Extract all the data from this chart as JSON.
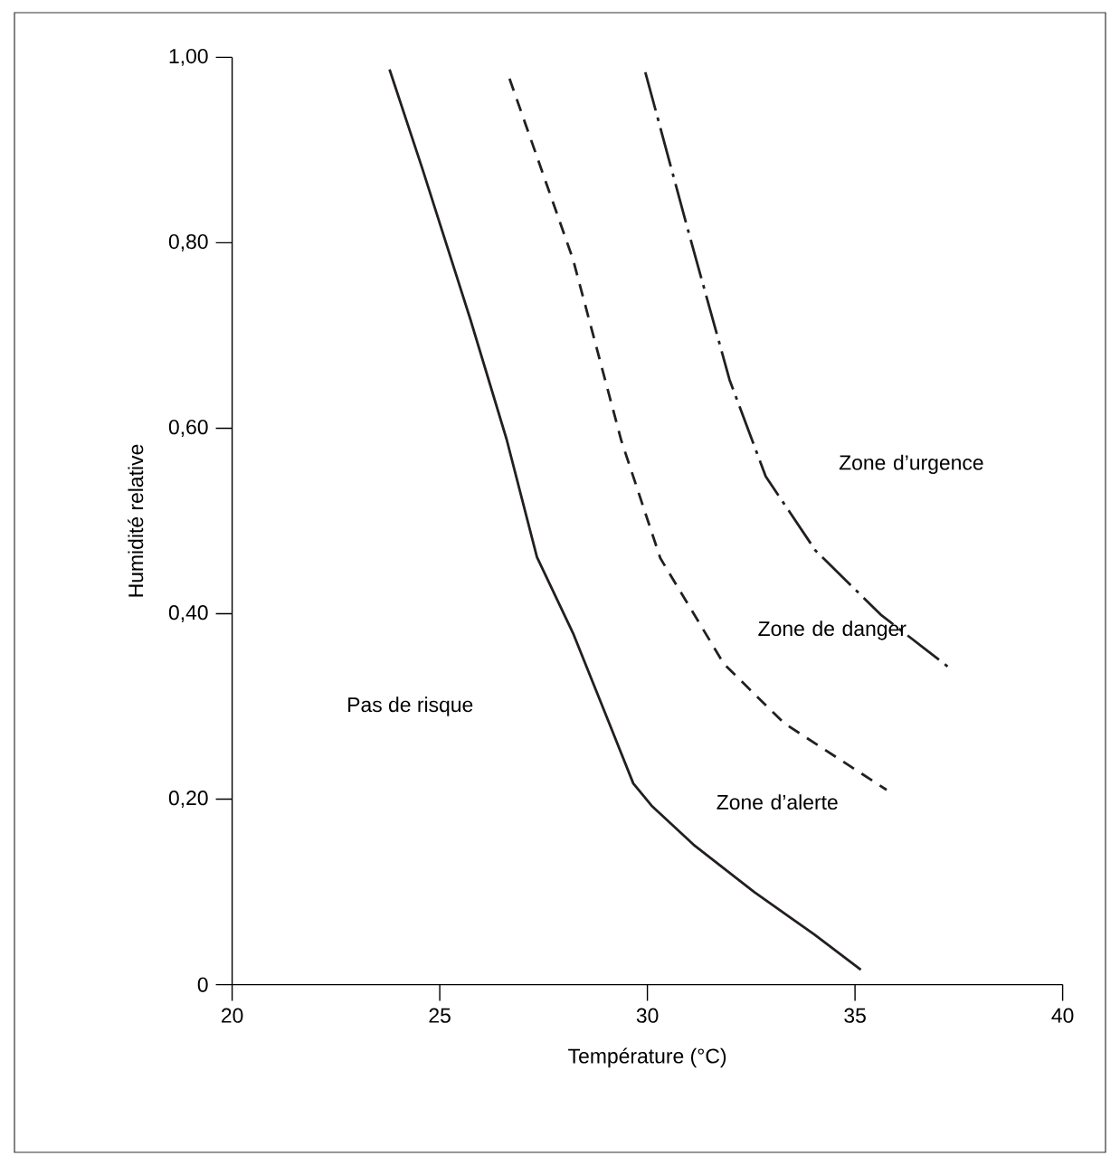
{
  "chart_data": {
    "type": "line",
    "xlabel": "Température (°C)",
    "ylabel": "Humidité relative",
    "xlim": [
      20,
      40
    ],
    "xticks": [
      20,
      25,
      30,
      35,
      40
    ],
    "ylim": [
      0,
      1
    ],
    "yticks": [
      0,
      {
        "value": 0.2,
        "label": "0,20"
      },
      {
        "value": 0.4,
        "label": "0,40"
      },
      {
        "value": 0.6,
        "label": "0,60"
      },
      {
        "value": 0.8,
        "label": "0,80"
      },
      {
        "value": 1.0,
        "label": "1,00"
      }
    ],
    "grid": false,
    "marker": "none",
    "series": [
      {
        "color": "#231f20",
        "line_style": "solid",
        "x": [
          23.79,
          24.58,
          25.74,
          26.61,
          27.34,
          28.21,
          29.08,
          29.66,
          30.1,
          31.11,
          32.57,
          34.02,
          35.14
        ],
        "values": [
          0.987,
          0.88,
          0.717,
          0.588,
          0.461,
          0.379,
          0.282,
          0.217,
          0.193,
          0.151,
          0.1,
          0.054,
          0.016
        ]
      },
      {
        "color": "#231f20",
        "line_style": "dashed",
        "x": [
          26.68,
          28.21,
          29.37,
          30.31,
          31.84,
          33.29,
          35.76
        ],
        "values": [
          0.977,
          0.782,
          0.587,
          0.46,
          0.346,
          0.282,
          0.21
        ]
      },
      {
        "color": "#231f20",
        "line_style": "dashdot",
        "x": [
          29.95,
          30.97,
          31.98,
          32.85,
          34.05,
          35.62,
          37.29
        ],
        "values": [
          0.984,
          0.815,
          0.652,
          0.548,
          0.468,
          0.399,
          0.341
        ]
      }
    ],
    "annotations": [
      "Pas de risque",
      "Zone d’alerte",
      "Zone de danger",
      "Zone d’urgence"
    ]
  }
}
